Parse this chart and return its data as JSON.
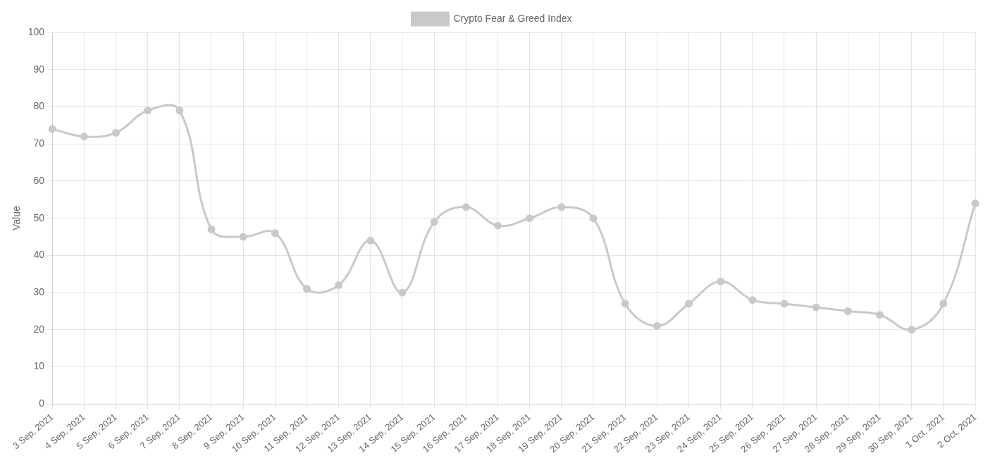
{
  "chart_data": {
    "type": "line",
    "ylabel": "Value",
    "categories": [
      "3 Sep, 2021",
      "4 Sep, 2021",
      "5 Sep, 2021",
      "6 Sep, 2021",
      "7 Sep, 2021",
      "8 Sep, 2021",
      "9 Sep, 2021",
      "10 Sep, 2021",
      "11 Sep, 2021",
      "12 Sep, 2021",
      "13 Sep, 2021",
      "14 Sep, 2021",
      "15 Sep, 2021",
      "16 Sep, 2021",
      "17 Sep, 2021",
      "18 Sep, 2021",
      "19 Sep, 2021",
      "20 Sep, 2021",
      "21 Sep, 2021",
      "22 Sep, 2021",
      "23 Sep, 2021",
      "24 Sep, 2021",
      "25 Sep, 2021",
      "26 Sep, 2021",
      "27 Sep, 2021",
      "28 Sep, 2021",
      "29 Sep, 2021",
      "30 Sep, 2021",
      "1 Oct, 2021",
      "2 Oct, 2021"
    ],
    "series": [
      {
        "name": "Crypto Fear & Greed Index",
        "color": "#c9c9c9",
        "values": [
          74,
          72,
          73,
          79,
          79,
          47,
          45,
          46,
          31,
          32,
          44,
          30,
          49,
          53,
          48,
          50,
          53,
          50,
          27,
          21,
          27,
          33,
          28,
          27,
          26,
          25,
          24,
          20,
          27,
          54
        ]
      }
    ],
    "ylim": [
      0,
      100
    ],
    "yticks": [
      0,
      10,
      20,
      30,
      40,
      50,
      60,
      70,
      80,
      90,
      100
    ],
    "grid": true,
    "legend": "top",
    "marker": "circle",
    "line_style": "solid"
  }
}
